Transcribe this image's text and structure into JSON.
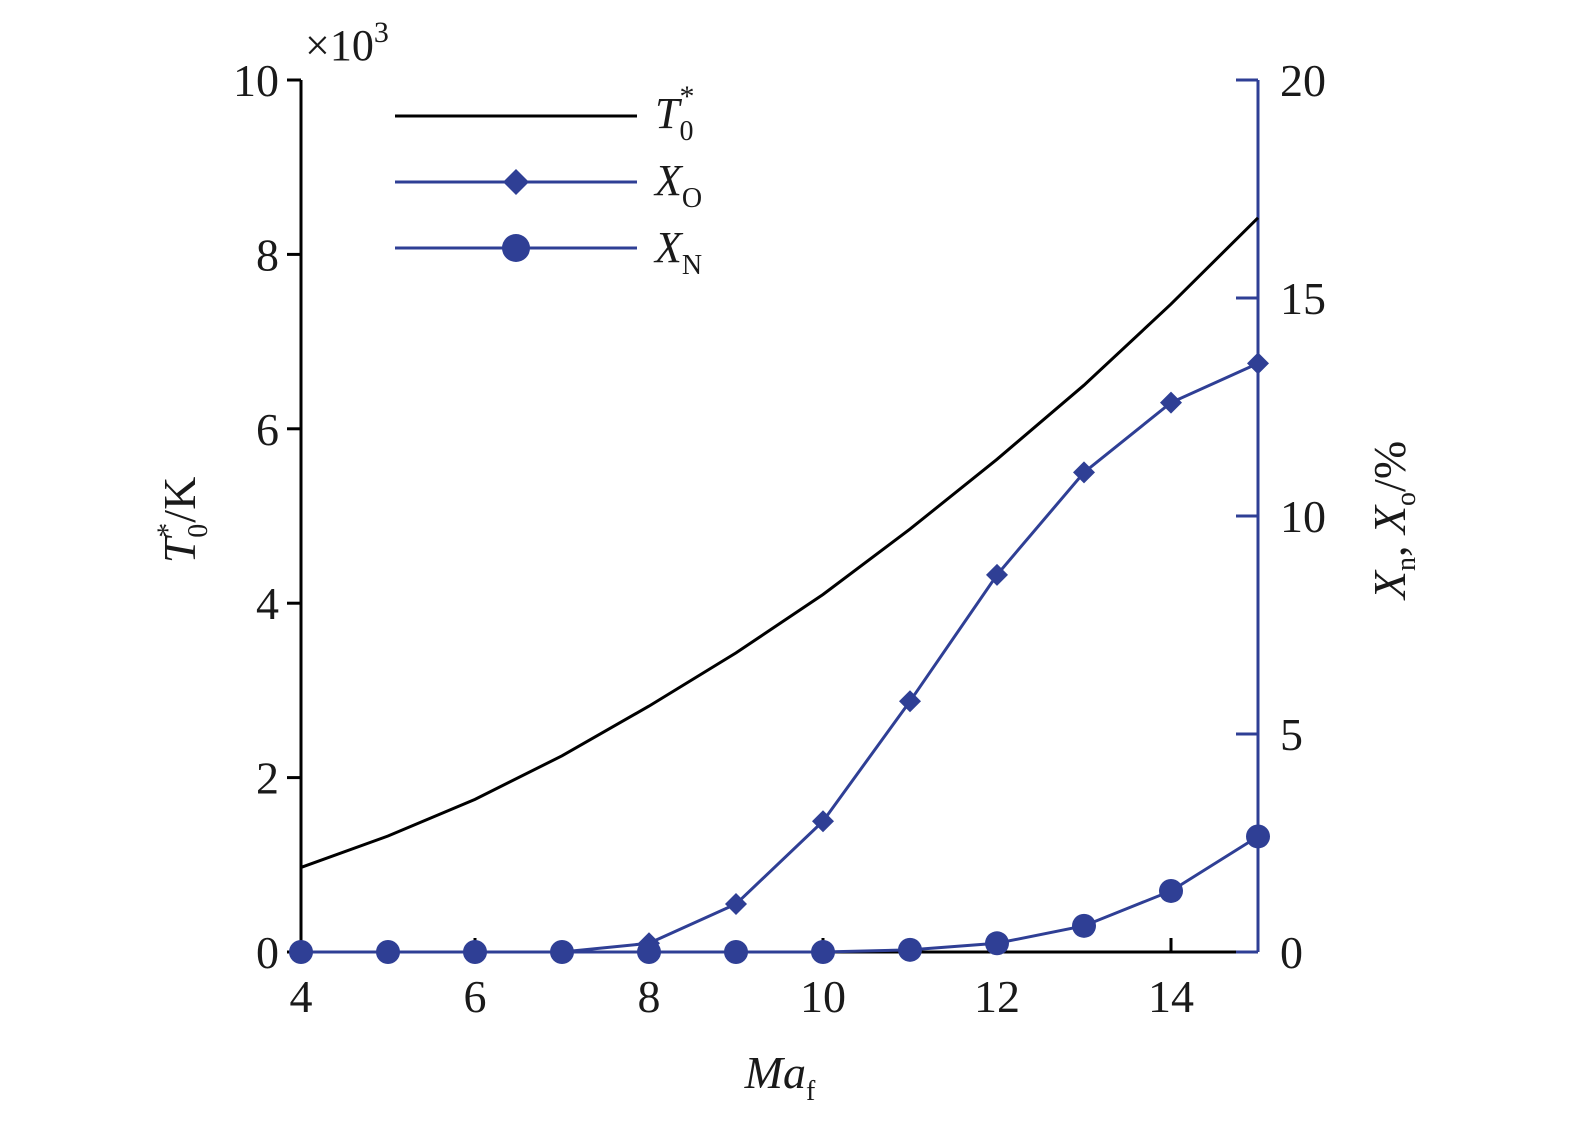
{
  "chart_data": {
    "type": "line",
    "x": [
      4,
      5,
      6,
      7,
      8,
      9,
      10,
      11,
      12,
      13,
      14,
      15
    ],
    "xlabel": {
      "main": "Ma",
      "sub": "f"
    },
    "xlim": [
      4,
      15
    ],
    "xticks": [
      4,
      6,
      8,
      10,
      12,
      14
    ],
    "y_left": {
      "label": {
        "main": "T",
        "sub": "0",
        "sup": "*",
        "unit": "/K"
      },
      "ylim": [
        0,
        10
      ],
      "ticks": [
        0,
        2,
        4,
        6,
        8,
        10
      ],
      "multiplier": "×10",
      "multiplier_exp": "3"
    },
    "y_right": {
      "label": {
        "a": "X",
        "a_sub": "n",
        "sep": ", ",
        "b": "X",
        "b_sub": "o",
        "unit": "/%"
      },
      "ylim": [
        0,
        20
      ],
      "ticks": [
        0,
        5,
        10,
        15,
        20
      ]
    },
    "series": [
      {
        "name": "T",
        "name_sub": "0",
        "name_sup": "*",
        "axis": "left",
        "color": "#000000",
        "marker": "none",
        "values": [
          0.97,
          1.33,
          1.75,
          2.25,
          2.82,
          3.43,
          4.1,
          4.85,
          5.65,
          6.5,
          7.43,
          8.42
        ]
      },
      {
        "name": "X",
        "name_sub": "O",
        "axis": "right",
        "color": "#2f3f95",
        "marker": "diamond",
        "values": [
          0,
          0,
          0,
          0,
          0.2,
          1.1,
          3.0,
          5.75,
          8.65,
          11.0,
          12.6,
          13.5
        ]
      },
      {
        "name": "X",
        "name_sub": "N",
        "axis": "right",
        "color": "#2f3f95",
        "marker": "circle",
        "values": [
          0,
          0,
          0,
          0,
          0,
          0,
          0,
          0.05,
          0.2,
          0.6,
          1.4,
          2.65
        ]
      }
    ],
    "legend_position": "top-left",
    "grid": false
  }
}
